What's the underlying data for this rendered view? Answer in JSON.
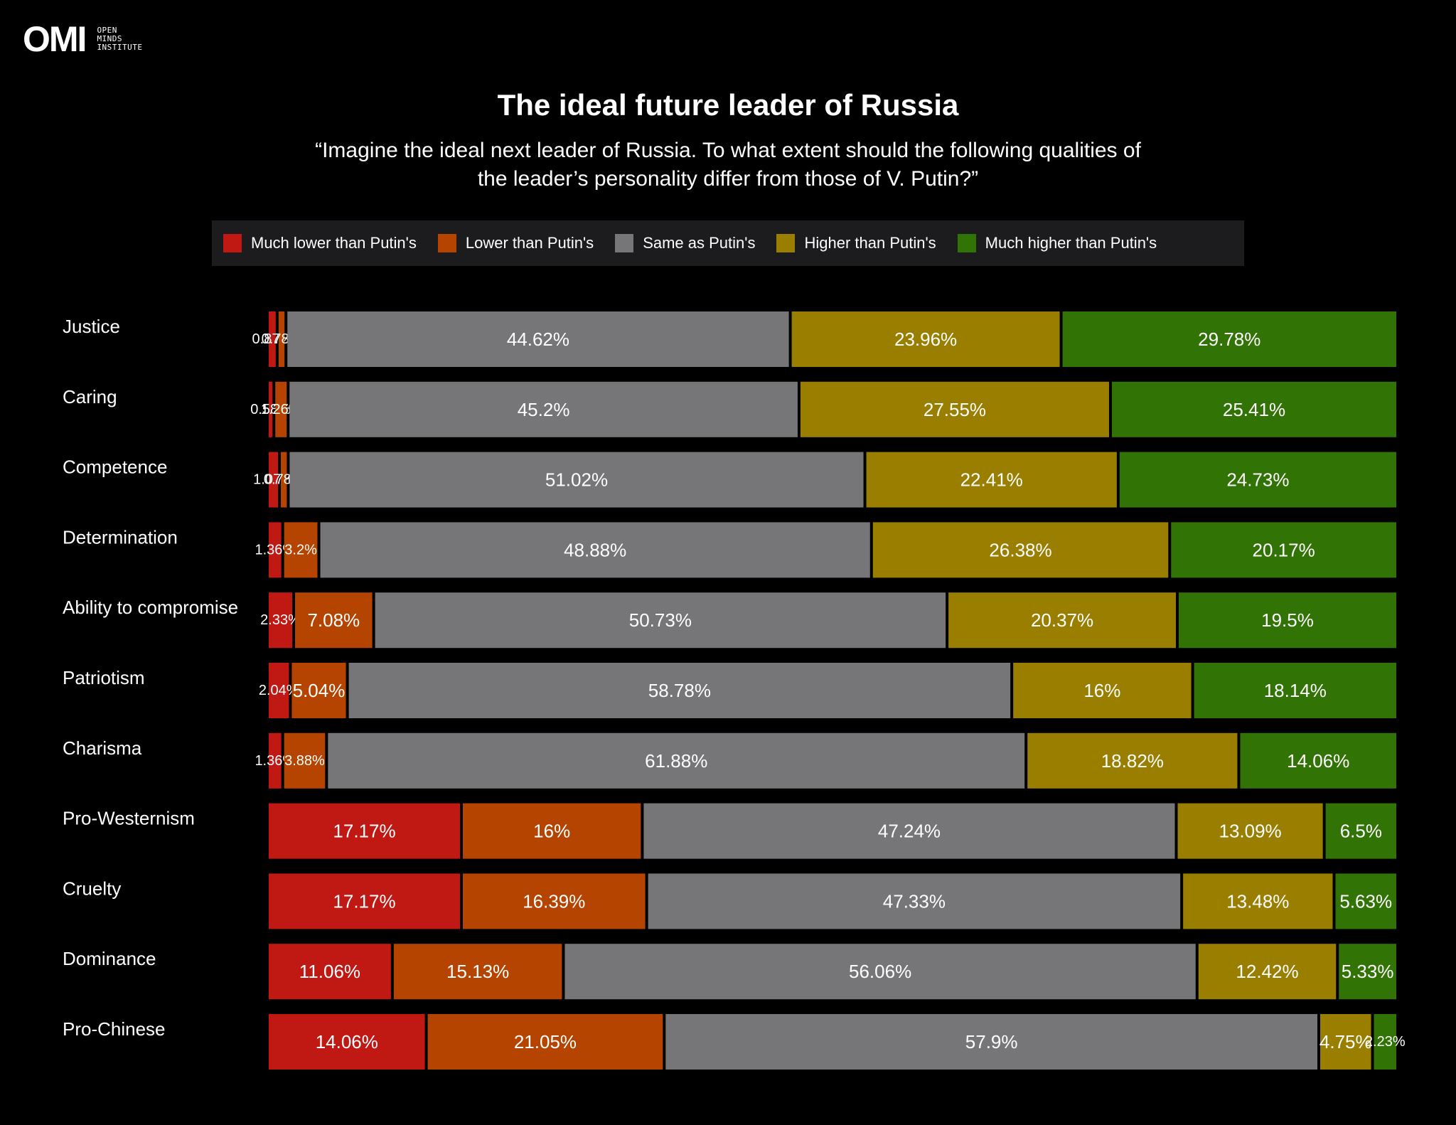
{
  "logo": {
    "mark": "OMI",
    "line1": "OPEN",
    "line2": "MINDS",
    "line3": "INSTITUTE"
  },
  "colors": {
    "much_lower": "#c01914",
    "lower": "#b44400",
    "same": "#767577",
    "higher": "#9a7e00",
    "much_higher": "#317305"
  },
  "chart_data": {
    "type": "bar",
    "orientation": "horizontal-stacked-100",
    "title": "The ideal future leader of Russia",
    "subtitle_lines": [
      "“Imagine the ideal next leader of Russia. To what extent should the following qualities of",
      "the leader’s personality differ from those of V. Putin?”"
    ],
    "legend": [
      "Much lower than Putin's",
      "Lower than Putin's",
      "Same as Putin's",
      "Higher than Putin's",
      "Much higher than Putin's"
    ],
    "categories": [
      "Justice",
      "Caring",
      "Competence",
      "Determination",
      "Ability to compromise",
      "Patriotism",
      "Charisma",
      "Pro-Westernism",
      "Cruelty",
      "Dominance",
      "Pro-Chinese"
    ],
    "series": [
      {
        "name": "Much lower than Putin's",
        "values": [
          0.87,
          0.58,
          1.07,
          1.36,
          2.33,
          2.04,
          1.36,
          17.17,
          17.17,
          11.06,
          14.06
        ]
      },
      {
        "name": "Lower than Putin's",
        "values": [
          0.78,
          1.26,
          0.78,
          3.2,
          7.08,
          5.04,
          3.88,
          16,
          16.39,
          15.13,
          21.05
        ]
      },
      {
        "name": "Same as Putin's",
        "values": [
          44.62,
          45.2,
          51.02,
          48.88,
          50.73,
          58.78,
          61.88,
          47.24,
          47.33,
          56.06,
          57.9
        ]
      },
      {
        "name": "Higher than Putin's",
        "values": [
          23.96,
          27.55,
          22.41,
          26.38,
          20.37,
          16,
          18.82,
          13.09,
          13.48,
          12.42,
          4.75
        ]
      },
      {
        "name": "Much higher than Putin's",
        "values": [
          29.78,
          25.41,
          24.73,
          20.17,
          19.5,
          18.14,
          14.06,
          6.5,
          5.63,
          5.33,
          2.23
        ]
      }
    ],
    "value_suffix": "%"
  }
}
